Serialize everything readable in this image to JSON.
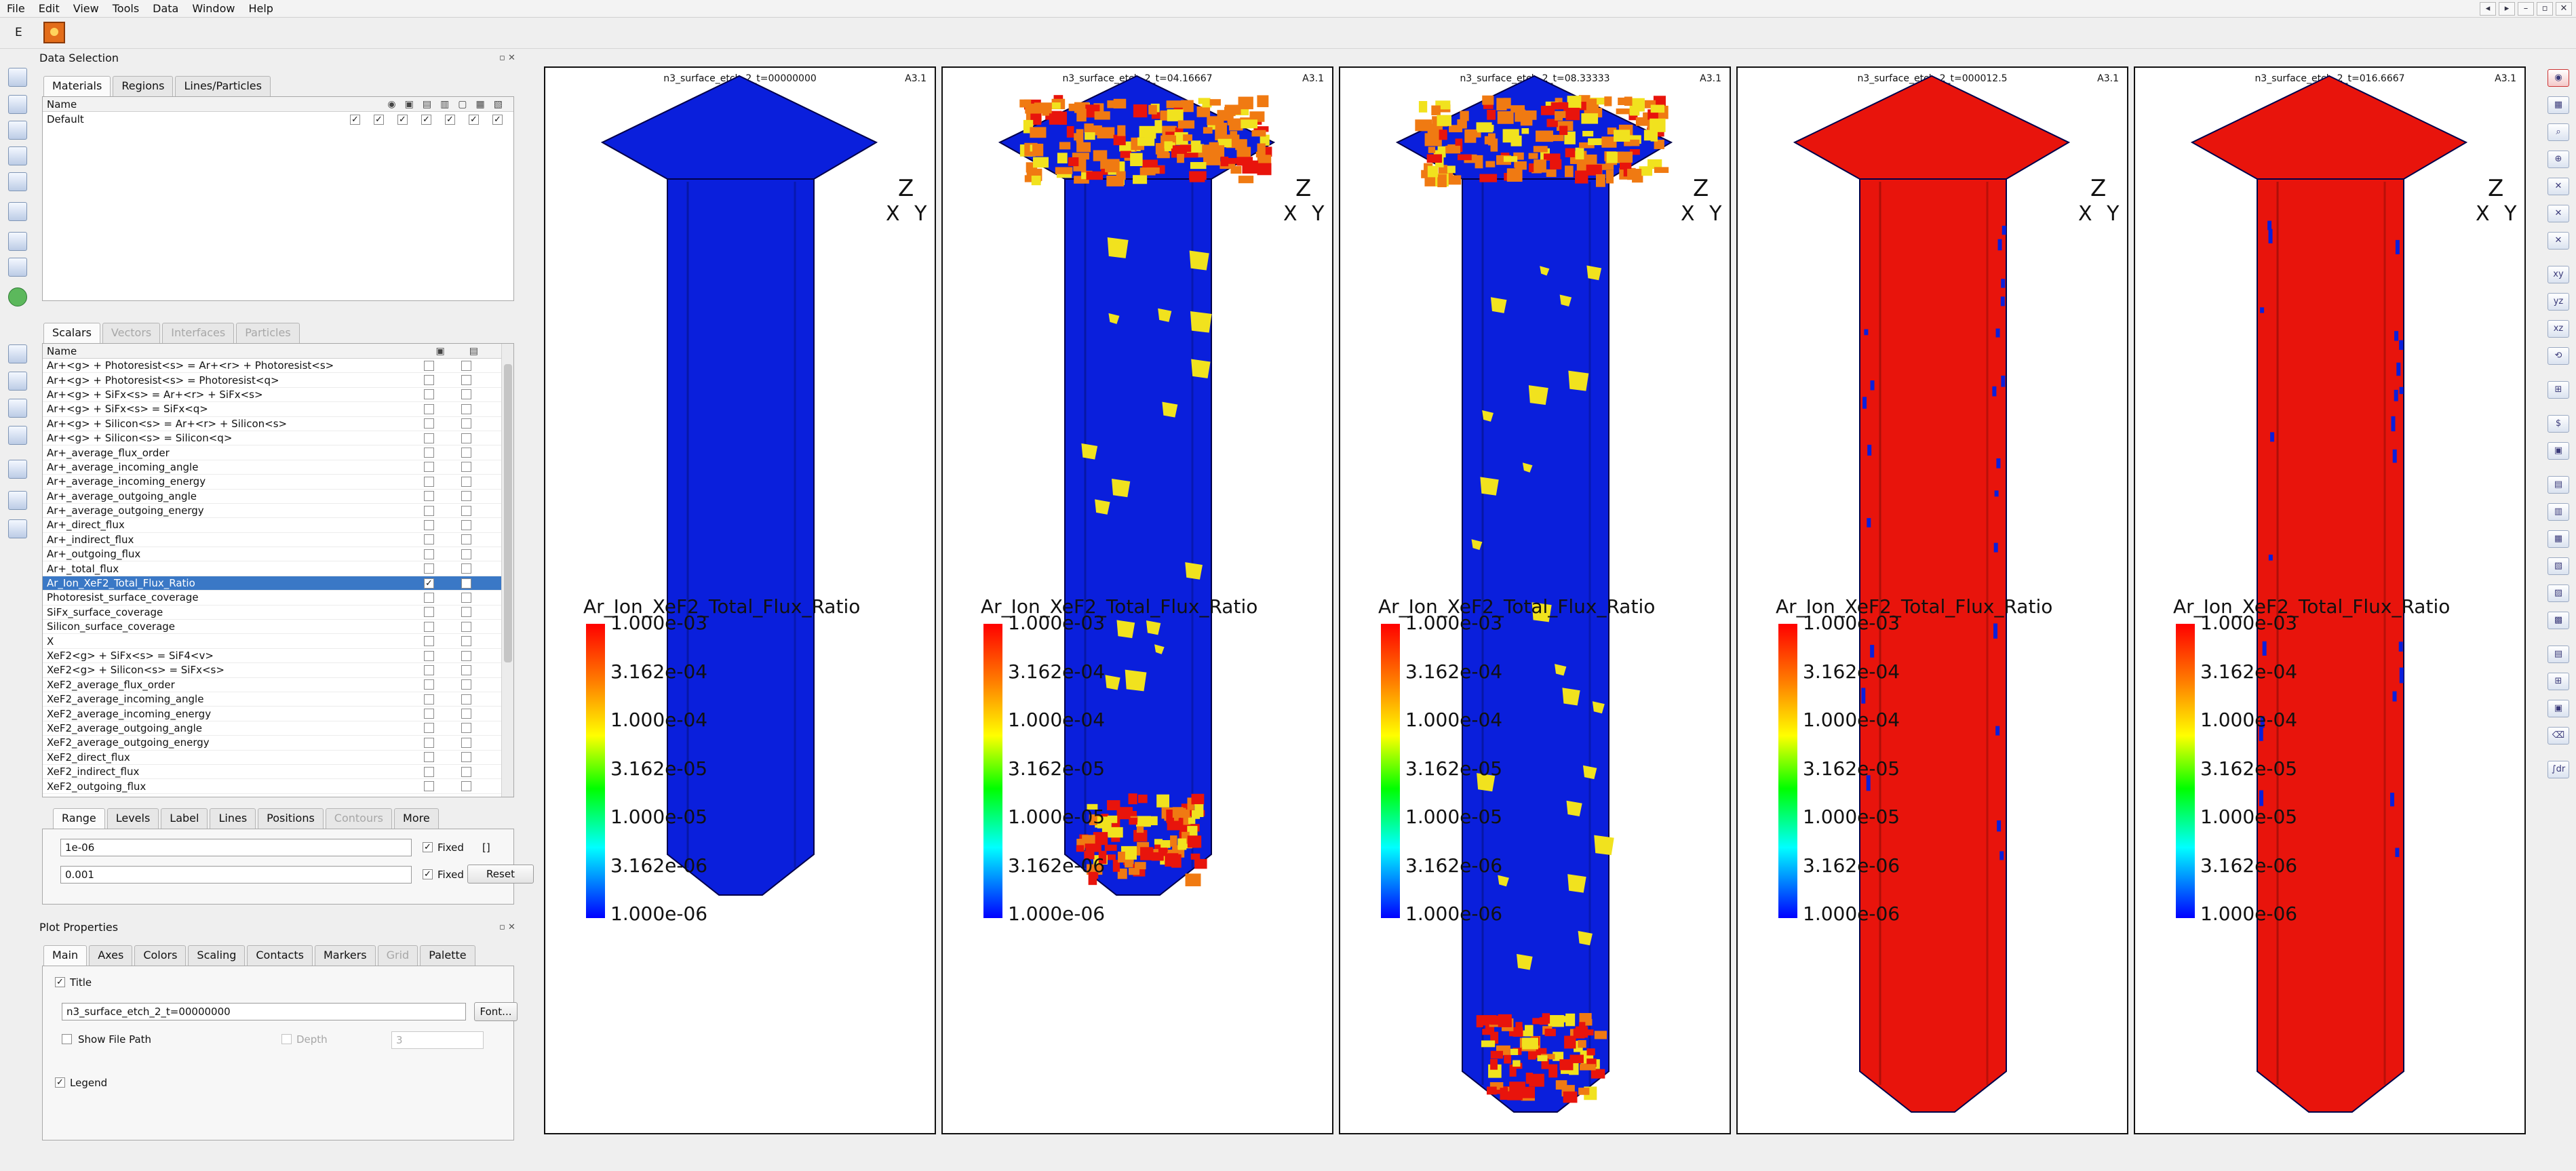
{
  "menu": [
    "File",
    "Edit",
    "View",
    "Tools",
    "Data",
    "Window",
    "Help"
  ],
  "window_buttons": [
    "◂",
    "▸",
    "–",
    "▫",
    "✕"
  ],
  "toolbar": {
    "e_label": "E"
  },
  "data_selection": {
    "title": "Data Selection",
    "float_buttons": "▫ ✕",
    "tabs": [
      "Materials",
      "Regions",
      "Lines/Particles"
    ],
    "materials_header": "Name",
    "materials": [
      {
        "name": "Default",
        "checks": [
          true,
          true,
          true,
          true,
          true,
          true,
          true
        ]
      }
    ]
  },
  "scalars": {
    "tabs": [
      "Scalars",
      "Vectors",
      "Interfaces",
      "Particles"
    ],
    "header": "Name",
    "rows": [
      {
        "name": "Ar+<g> + Photoresist<s> = Ar+<r> + Photoresist<s>",
        "selected": false,
        "c1": false
      },
      {
        "name": "Ar+<g> + Photoresist<s> = Photoresist<q>",
        "selected": false,
        "c1": false
      },
      {
        "name": "Ar+<g> + SiFx<s> = Ar+<r> + SiFx<s>",
        "selected": false,
        "c1": false
      },
      {
        "name": "Ar+<g> + SiFx<s> = SiFx<q>",
        "selected": false,
        "c1": false
      },
      {
        "name": "Ar+<g> + Silicon<s> = Ar+<r> + Silicon<s>",
        "selected": false,
        "c1": false
      },
      {
        "name": "Ar+<g> + Silicon<s> = Silicon<q>",
        "selected": false,
        "c1": false
      },
      {
        "name": "Ar+_average_flux_order",
        "selected": false,
        "c1": false
      },
      {
        "name": "Ar+_average_incoming_angle",
        "selected": false,
        "c1": false
      },
      {
        "name": "Ar+_average_incoming_energy",
        "selected": false,
        "c1": false
      },
      {
        "name": "Ar+_average_outgoing_angle",
        "selected": false,
        "c1": false
      },
      {
        "name": "Ar+_average_outgoing_energy",
        "selected": false,
        "c1": false
      },
      {
        "name": "Ar+_direct_flux",
        "selected": false,
        "c1": false
      },
      {
        "name": "Ar+_indirect_flux",
        "selected": false,
        "c1": false
      },
      {
        "name": "Ar+_outgoing_flux",
        "selected": false,
        "c1": false
      },
      {
        "name": "Ar+_total_flux",
        "selected": false,
        "c1": false
      },
      {
        "name": "Ar_Ion_XeF2_Total_Flux_Ratio",
        "selected": true,
        "c1": true
      },
      {
        "name": "Photoresist_surface_coverage",
        "selected": false,
        "c1": false
      },
      {
        "name": "SiFx_surface_coverage",
        "selected": false,
        "c1": false
      },
      {
        "name": "Silicon_surface_coverage",
        "selected": false,
        "c1": false
      },
      {
        "name": "X",
        "selected": false,
        "c1": false
      },
      {
        "name": "XeF2<g> + SiFx<s> = SiF4<v>",
        "selected": false,
        "c1": false
      },
      {
        "name": "XeF2<g> + Silicon<s> = SiFx<s>",
        "selected": false,
        "c1": false
      },
      {
        "name": "XeF2_average_flux_order",
        "selected": false,
        "c1": false
      },
      {
        "name": "XeF2_average_incoming_angle",
        "selected": false,
        "c1": false
      },
      {
        "name": "XeF2_average_incoming_energy",
        "selected": false,
        "c1": false
      },
      {
        "name": "XeF2_average_outgoing_angle",
        "selected": false,
        "c1": false
      },
      {
        "name": "XeF2_average_outgoing_energy",
        "selected": false,
        "c1": false
      },
      {
        "name": "XeF2_direct_flux",
        "selected": false,
        "c1": false
      },
      {
        "name": "XeF2_indirect_flux",
        "selected": false,
        "c1": false
      },
      {
        "name": "XeF2_outgoing_flux",
        "selected": false,
        "c1": false
      }
    ]
  },
  "range": {
    "tabs": [
      "Range",
      "Levels",
      "Label",
      "Lines",
      "Positions",
      "Contours",
      "More"
    ],
    "min_value": "1e-06",
    "max_value": "0.001",
    "fixed_label": "Fixed",
    "reset_label": "Reset",
    "bracket": "[]"
  },
  "plot_properties": {
    "title": "Plot Properties",
    "float_buttons": "▫ ✕",
    "tabs": [
      "Main",
      "Axes",
      "Colors",
      "Scaling",
      "Contacts",
      "Markers",
      "Grid",
      "Palette"
    ],
    "title_check_label": "Title",
    "title_value": "n3_surface_etch_2_t=00000000",
    "font_button": "Font...",
    "show_file_path": "Show File Path",
    "depth_label": "Depth",
    "depth_value": "3",
    "legend_label": "Legend"
  },
  "viewports": [
    {
      "title": "n3_surface_etch_2_t=00000000",
      "corner": "A3.1",
      "pattern": "blue"
    },
    {
      "title": "n3_surface_etch_2_t=04.16667",
      "corner": "A3.1",
      "pattern": "partial"
    },
    {
      "title": "n3_surface_etch_2_t=08.33333",
      "corner": "A3.1",
      "pattern": "partial2"
    },
    {
      "title": "n3_surface_etch_2_t=000012.5",
      "corner": "A3.1",
      "pattern": "red"
    },
    {
      "title": "n3_surface_etch_2_t=016.6667",
      "corner": "A3.1",
      "pattern": "red"
    }
  ],
  "plot_legend": {
    "title": "Ar_Ion_XeF2_Total_Flux_Ratio",
    "ticks": [
      "1.000e-03",
      "3.162e-04",
      "1.000e-04",
      "3.162e-05",
      "1.000e-05",
      "3.162e-06",
      "1.000e-06"
    ],
    "scale": "log"
  },
  "axes_triad": {
    "z": "Z",
    "xy": "X Y"
  },
  "colors": {
    "blue": "#0a1fdc",
    "red": "#e8140c",
    "yellow": "#f1e21e",
    "orange": "#f07a12",
    "selection": "#3a78c6"
  },
  "right_icon_glyphs": [
    "◉",
    "▦",
    "⌕",
    "⊕",
    "✕",
    "✕",
    "✕",
    "xy",
    "yz",
    "xz",
    "⟲",
    "⊞",
    "$",
    "▣",
    "▤",
    "▥",
    "▦",
    "▧",
    "▨",
    "▩",
    "▤",
    "⊞",
    "▣",
    "⌫",
    "∫dr"
  ]
}
